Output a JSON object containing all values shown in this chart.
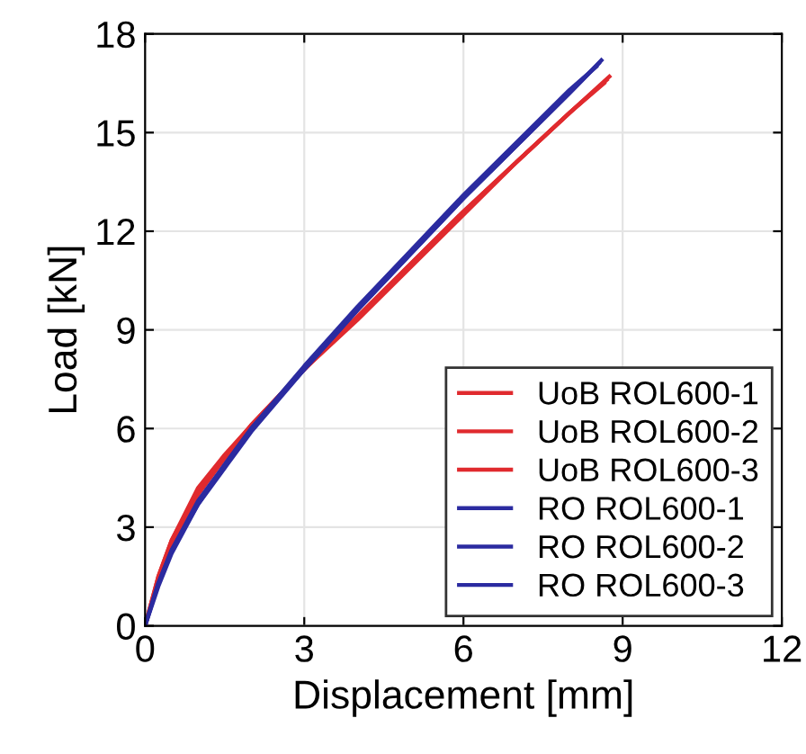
{
  "chart_data": {
    "type": "line",
    "xlabel": "Displacement [mm]",
    "ylabel": "Load [kN]",
    "xlim": [
      0,
      12
    ],
    "ylim": [
      0,
      18
    ],
    "xticks": [
      0,
      3,
      6,
      9,
      12
    ],
    "yticks": [
      0,
      3,
      6,
      9,
      12,
      15,
      18
    ],
    "grid": true,
    "legend": "bottom right",
    "line_style": "solid",
    "series": [
      {
        "name": "UoB ROL600-1",
        "color": "#e02a2e",
        "x": [
          0,
          0.25,
          0.5,
          1,
          1.5,
          2,
          3,
          4,
          5,
          6,
          7,
          8,
          8.75
        ],
        "values": [
          0,
          1.5,
          2.6,
          4.1,
          5.1,
          6.1,
          7.8,
          9.4,
          11.0,
          12.6,
          14.1,
          15.6,
          16.7
        ]
      },
      {
        "name": "UoB ROL600-2",
        "color": "#e02a2e",
        "x": [
          0,
          0.25,
          0.5,
          1,
          1.5,
          2,
          3,
          4,
          5,
          6,
          7,
          8,
          8.7
        ],
        "values": [
          0,
          1.4,
          2.5,
          4.0,
          5.1,
          6.1,
          7.8,
          9.4,
          11.0,
          12.6,
          14.1,
          15.6,
          16.6
        ]
      },
      {
        "name": "UoB ROL600-3",
        "color": "#e02a2e",
        "x": [
          0,
          0.25,
          0.5,
          1,
          1.5,
          2,
          3,
          4,
          5,
          6,
          7,
          8,
          8.65
        ],
        "values": [
          0,
          1.5,
          2.6,
          4.2,
          5.2,
          6.1,
          7.8,
          9.3,
          10.9,
          12.5,
          14.1,
          15.6,
          16.5
        ]
      },
      {
        "name": "RO ROL600-1",
        "color": "#2b2ba0",
        "x": [
          0,
          0.25,
          0.5,
          1,
          1.5,
          2,
          3,
          4,
          5,
          6,
          7,
          8,
          8.6
        ],
        "values": [
          0,
          1.3,
          2.3,
          3.8,
          4.9,
          6.0,
          7.8,
          9.6,
          11.3,
          13.0,
          14.6,
          16.2,
          17.2
        ]
      },
      {
        "name": "RO ROL600-2",
        "color": "#2b2ba0",
        "x": [
          0,
          0.25,
          0.5,
          1,
          1.5,
          2,
          3,
          4,
          5,
          6,
          7,
          8,
          8.55
        ],
        "values": [
          0,
          1.3,
          2.3,
          3.7,
          4.8,
          5.9,
          7.8,
          9.6,
          11.3,
          13.0,
          14.6,
          16.2,
          17.1
        ]
      },
      {
        "name": "RO ROL600-3",
        "color": "#2b2ba0",
        "x": [
          0,
          0.25,
          0.5,
          1,
          1.5,
          2,
          3,
          4,
          5,
          6,
          7,
          8,
          8.5
        ],
        "values": [
          0,
          1.2,
          2.2,
          3.7,
          4.9,
          6.0,
          7.9,
          9.7,
          11.4,
          13.1,
          14.7,
          16.3,
          17.0
        ]
      }
    ]
  }
}
